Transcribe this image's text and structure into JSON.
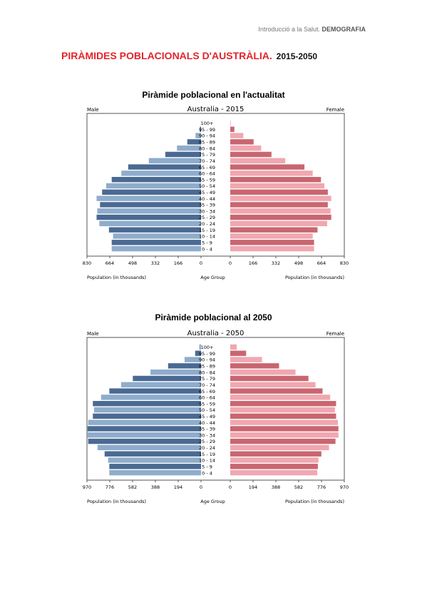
{
  "header": {
    "course": "Introducció a la Salut.",
    "subject": "DEMOGRAFIA"
  },
  "title": {
    "main": "PIRÀMIDES POBLACIONALS D'AUSTRÀLIA.",
    "years": "2015-2050"
  },
  "sections": [
    {
      "title": "Piràmide poblacional en l'actualitat"
    },
    {
      "title": "Piràmide poblacional al 2050"
    }
  ],
  "colors": {
    "male_dark": "#4a6a93",
    "male_light": "#8faccc",
    "female_dark": "#c96670",
    "female_light": "#f0a7b0"
  },
  "chart_data": [
    {
      "type": "bar",
      "title": "Australia - 2015",
      "left_label": "Male",
      "right_label": "Female",
      "xlabel_left": "Population (in thousands)",
      "xlabel_center": "Age Group",
      "xlabel_right": "Population (in thousands)",
      "xlim": [
        0,
        830
      ],
      "ticks_left": [
        "830",
        "664",
        "498",
        "332",
        "166",
        "0"
      ],
      "ticks_right": [
        "0",
        "166",
        "332",
        "498",
        "664",
        "830"
      ],
      "categories": [
        "100+",
        "95 - 99",
        "90 - 94",
        "85 - 89",
        "80 - 84",
        "75 - 79",
        "70 - 74",
        "65 - 69",
        "60 - 64",
        "55 - 59",
        "50 - 54",
        "45 - 49",
        "40 - 44",
        "35 - 39",
        "30 - 34",
        "25 - 29",
        "20 - 24",
        "15 - 19",
        "10 - 14",
        "5 - 9",
        "0 - 4"
      ],
      "series": [
        {
          "name": "Male",
          "values": [
            1,
            8,
            40,
            100,
            175,
            260,
            380,
            530,
            580,
            650,
            690,
            720,
            760,
            735,
            755,
            760,
            740,
            670,
            640,
            650,
            650
          ]
        },
        {
          "name": "Female",
          "values": [
            4,
            30,
            95,
            170,
            225,
            300,
            400,
            540,
            600,
            660,
            685,
            710,
            735,
            710,
            730,
            735,
            705,
            635,
            600,
            610,
            610
          ]
        }
      ]
    },
    {
      "type": "bar",
      "title": "Australia - 2050",
      "left_label": "Male",
      "right_label": "Female",
      "xlabel_left": "Population (in thousands)",
      "xlabel_center": "Age Group",
      "xlabel_right": "Population (in thousands)",
      "xlim": [
        0,
        970
      ],
      "ticks_left": [
        "970",
        "776",
        "582",
        "388",
        "194",
        "0"
      ],
      "ticks_right": [
        "0",
        "194",
        "388",
        "582",
        "776",
        "970"
      ],
      "categories": [
        "100+",
        "95 - 99",
        "90 - 94",
        "85 - 89",
        "80 - 84",
        "75 - 79",
        "70 - 74",
        "65 - 69",
        "60 - 64",
        "55 - 59",
        "50 - 54",
        "45 - 49",
        "40 - 44",
        "35 - 39",
        "30 - 34",
        "25 - 29",
        "20 - 24",
        "15 - 19",
        "10 - 14",
        "5 - 9",
        "0 - 4"
      ],
      "series": [
        {
          "name": "Male",
          "values": [
            15,
            50,
            140,
            280,
            430,
            580,
            680,
            780,
            850,
            920,
            910,
            920,
            960,
            965,
            965,
            960,
            880,
            820,
            790,
            780,
            780
          ]
        },
        {
          "name": "Female",
          "values": [
            55,
            135,
            270,
            415,
            555,
            665,
            725,
            785,
            850,
            900,
            890,
            900,
            915,
            920,
            920,
            895,
            840,
            775,
            750,
            745,
            740
          ]
        }
      ]
    }
  ]
}
